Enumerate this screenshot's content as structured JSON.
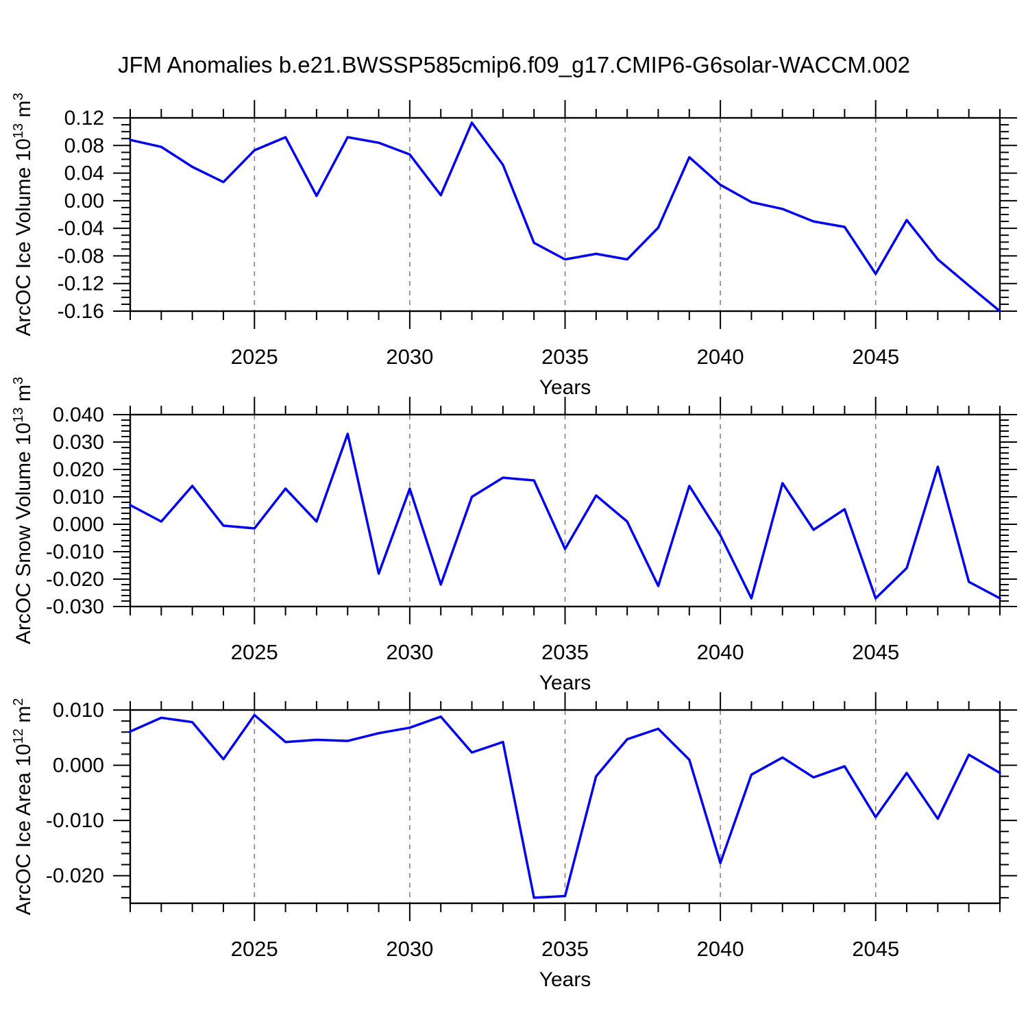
{
  "title": "JFM Anomalies b.e21.BWSSP585cmip6.f09_g17.CMIP6-G6solar-WACCM.002",
  "colors": {
    "line": "#0000EE",
    "frame": "#000000",
    "grid": "#808080",
    "text": "#000000",
    "background": "#FFFFFF"
  },
  "xlabel": "Years",
  "chart_data": [
    {
      "type": "line",
      "name": "ice-volume-chart",
      "ylabel": "ArcOC Ice Volume 10^13 m^3",
      "ylabel_parts": [
        {
          "t": "ArcOC Ice Volume 10"
        },
        {
          "t": "13",
          "sup": true
        },
        {
          "t": " m"
        },
        {
          "t": "3",
          "sup": true
        }
      ],
      "xlabel": "Years",
      "x": [
        2021,
        2022,
        2023,
        2024,
        2025,
        2026,
        2027,
        2028,
        2029,
        2030,
        2031,
        2032,
        2033,
        2034,
        2035,
        2036,
        2037,
        2038,
        2039,
        2040,
        2041,
        2042,
        2043,
        2044,
        2045,
        2046,
        2047,
        2048,
        2049
      ],
      "values": [
        0.088,
        0.078,
        0.049,
        0.027,
        0.073,
        0.092,
        0.007,
        0.092,
        0.084,
        0.067,
        0.008,
        0.113,
        0.052,
        -0.061,
        -0.085,
        -0.077,
        -0.085,
        -0.039,
        0.063,
        0.023,
        -0.002,
        -0.012,
        -0.03,
        -0.038,
        -0.106,
        -0.028,
        -0.085,
        -0.123,
        -0.16
      ],
      "xlim": [
        2021,
        2049
      ],
      "ylim": [
        -0.16,
        0.12
      ],
      "yticks": {
        "values": [
          0.12,
          0.08,
          0.04,
          0.0,
          -0.04,
          -0.08,
          -0.12,
          -0.16
        ],
        "labels": [
          "0.12",
          "0.08",
          "0.04",
          "0.00",
          "-0.04",
          "-0.08",
          "-0.12",
          "-0.16"
        ]
      },
      "y_minor_step": 0.01,
      "x_major": [
        2025,
        2030,
        2035,
        2040,
        2045
      ],
      "x_major_labels": [
        "2025",
        "2030",
        "2035",
        "2040",
        "2045"
      ],
      "grid": "vertical-dashed",
      "legend": "none"
    },
    {
      "type": "line",
      "name": "snow-volume-chart",
      "ylabel": "ArcOC Snow Volume 10^13 m^3",
      "ylabel_parts": [
        {
          "t": "ArcOC Snow Volume 10"
        },
        {
          "t": "13",
          "sup": true
        },
        {
          "t": " m"
        },
        {
          "t": "3",
          "sup": true
        }
      ],
      "xlabel": "Years",
      "x": [
        2021,
        2022,
        2023,
        2024,
        2025,
        2026,
        2027,
        2028,
        2029,
        2030,
        2031,
        2032,
        2033,
        2034,
        2035,
        2036,
        2037,
        2038,
        2039,
        2040,
        2041,
        2042,
        2043,
        2044,
        2045,
        2046,
        2047,
        2048,
        2049
      ],
      "values": [
        0.007,
        0.001,
        0.014,
        -0.0005,
        -0.0015,
        0.013,
        0.001,
        0.033,
        -0.018,
        0.013,
        -0.022,
        0.01,
        0.017,
        0.016,
        -0.009,
        0.0105,
        0.001,
        -0.0225,
        0.014,
        -0.004,
        -0.027,
        0.015,
        -0.002,
        0.0055,
        -0.027,
        -0.016,
        0.021,
        -0.021,
        -0.027
      ],
      "xlim": [
        2021,
        2049
      ],
      "ylim": [
        -0.03,
        0.04
      ],
      "yticks": {
        "values": [
          0.04,
          0.03,
          0.02,
          0.01,
          0.0,
          -0.01,
          -0.02,
          -0.03
        ],
        "labels": [
          "0.040",
          "0.030",
          "0.020",
          "0.010",
          "0.000",
          "-0.010",
          "-0.020",
          "-0.030"
        ]
      },
      "y_minor_step": 0.002,
      "x_major": [
        2025,
        2030,
        2035,
        2040,
        2045
      ],
      "x_major_labels": [
        "2025",
        "2030",
        "2035",
        "2040",
        "2045"
      ],
      "grid": "vertical-dashed",
      "legend": "none"
    },
    {
      "type": "line",
      "name": "ice-area-chart",
      "ylabel": "ArcOC Ice Area 10^12 m^2",
      "ylabel_parts": [
        {
          "t": "ArcOC Ice Area 10"
        },
        {
          "t": "12",
          "sup": true
        },
        {
          "t": " m"
        },
        {
          "t": "2",
          "sup": true
        }
      ],
      "xlabel": "Years",
      "x": [
        2021,
        2022,
        2023,
        2024,
        2025,
        2026,
        2027,
        2028,
        2029,
        2030,
        2031,
        2032,
        2033,
        2034,
        2035,
        2036,
        2037,
        2038,
        2039,
        2040,
        2041,
        2042,
        2043,
        2044,
        2045,
        2046,
        2047,
        2048,
        2049
      ],
      "values": [
        0.0061,
        0.0086,
        0.0078,
        0.0011,
        0.0091,
        0.0042,
        0.0046,
        0.0044,
        0.0058,
        0.0068,
        0.0088,
        0.0023,
        0.0042,
        -0.024,
        -0.0237,
        -0.002,
        0.0047,
        0.0066,
        0.001,
        -0.0177,
        -0.0017,
        0.0014,
        -0.0022,
        -0.0002,
        -0.0094,
        -0.0014,
        -0.0097,
        0.0019,
        -0.0014
      ],
      "xlim": [
        2021,
        2049
      ],
      "ylim": [
        -0.025,
        0.01
      ],
      "yticks": {
        "values": [
          0.01,
          0.0,
          -0.01,
          -0.02
        ],
        "labels": [
          "0.010",
          "0.000",
          "-0.010",
          "-0.020"
        ]
      },
      "y_minor_step": 0.002,
      "x_major": [
        2025,
        2030,
        2035,
        2040,
        2045
      ],
      "x_major_labels": [
        "2025",
        "2030",
        "2035",
        "2040",
        "2045"
      ],
      "grid": "vertical-dashed",
      "legend": "none"
    }
  ]
}
